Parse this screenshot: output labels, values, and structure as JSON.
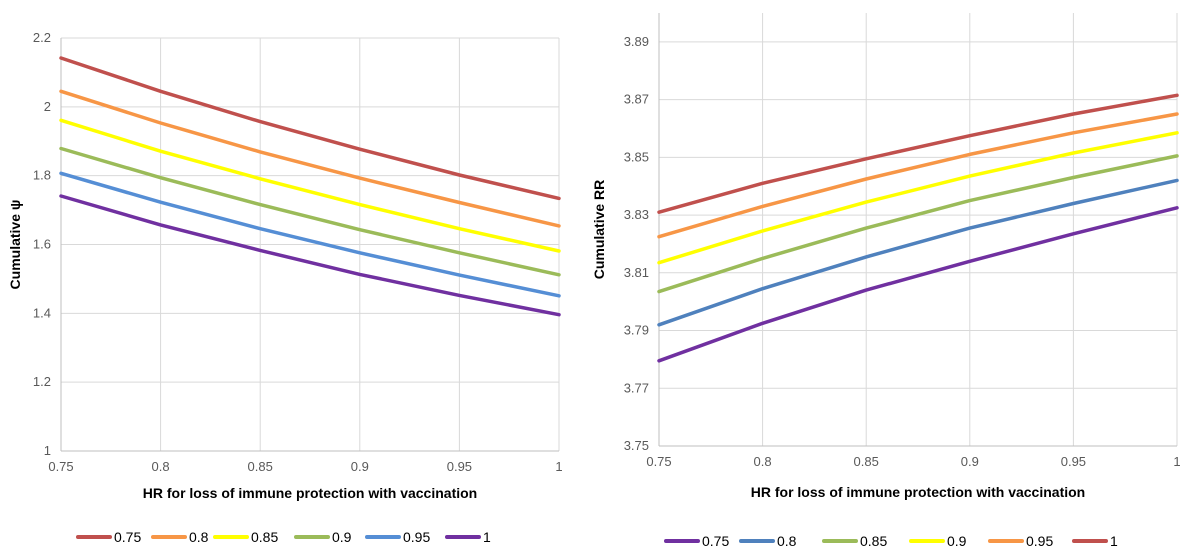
{
  "chart_data": [
    {
      "type": "line",
      "xlabel": "HR for loss of immune protection with vaccination",
      "ylabel": "Cumulative ψ",
      "xlim": [
        0.75,
        1
      ],
      "ylim": [
        1,
        2.2
      ],
      "xticks": [
        "0.75",
        "0.8",
        "0.85",
        "0.9",
        "0.95",
        "1"
      ],
      "yticks": [
        "1",
        "1.2",
        "1.4",
        "1.6",
        "1.8",
        "2",
        "2.2"
      ],
      "grid": true,
      "legend": "bottom",
      "x": [
        0.75,
        0.8,
        0.85,
        0.9,
        0.95,
        1
      ],
      "series": [
        {
          "name": "0.75",
          "color": "#c0504d",
          "values": [
            2.142,
            2.045,
            1.957,
            1.877,
            1.802,
            1.734
          ]
        },
        {
          "name": "0.8",
          "color": "#f79646",
          "values": [
            2.045,
            1.953,
            1.869,
            1.793,
            1.722,
            1.654
          ]
        },
        {
          "name": "0.85",
          "color": "#ffff00",
          "values": [
            1.961,
            1.871,
            1.791,
            1.716,
            1.646,
            1.581
          ]
        },
        {
          "name": "0.9",
          "color": "#9bbb59",
          "values": [
            1.879,
            1.794,
            1.716,
            1.643,
            1.576,
            1.512
          ]
        },
        {
          "name": "0.95",
          "color": "#558ed5",
          "values": [
            1.807,
            1.723,
            1.646,
            1.576,
            1.511,
            1.451
          ]
        },
        {
          "name": "1",
          "color": "#7030a0",
          "values": [
            1.741,
            1.657,
            1.583,
            1.513,
            1.452,
            1.396
          ]
        }
      ]
    },
    {
      "type": "line",
      "xlabel": "HR for loss of immune protection with vaccination",
      "ylabel": "Cumulative RR",
      "xlim": [
        0.75,
        1
      ],
      "ylim": [
        3.75,
        3.9
      ],
      "xticks": [
        "0.75",
        "0.8",
        "0.85",
        "0.9",
        "0.95",
        "1"
      ],
      "yticks": [
        "3.75",
        "3.77",
        "3.79",
        "3.81",
        "3.83",
        "3.85",
        "3.87",
        "3.89"
      ],
      "grid": true,
      "legend": "bottom",
      "x": [
        0.75,
        0.8,
        0.85,
        0.9,
        0.95,
        1
      ],
      "series": [
        {
          "name": "0.75",
          "color": "#7030a0",
          "values": [
            3.7795,
            3.7925,
            3.804,
            3.814,
            3.8235,
            3.8325
          ]
        },
        {
          "name": "0.8",
          "color": "#4f81bd",
          "values": [
            3.792,
            3.8045,
            3.8155,
            3.8255,
            3.834,
            3.842
          ]
        },
        {
          "name": "0.85",
          "color": "#9bbb59",
          "values": [
            3.8035,
            3.815,
            3.8255,
            3.835,
            3.843,
            3.8505
          ]
        },
        {
          "name": "0.9",
          "color": "#ffff00",
          "values": [
            3.8135,
            3.8245,
            3.8345,
            3.8435,
            3.8515,
            3.8585
          ]
        },
        {
          "name": "0.95",
          "color": "#f79646",
          "values": [
            3.8225,
            3.833,
            3.8425,
            3.851,
            3.8585,
            3.865
          ]
        },
        {
          "name": "1",
          "color": "#c0504d",
          "values": [
            3.831,
            3.841,
            3.8495,
            3.8575,
            3.865,
            3.8715
          ]
        }
      ]
    }
  ]
}
